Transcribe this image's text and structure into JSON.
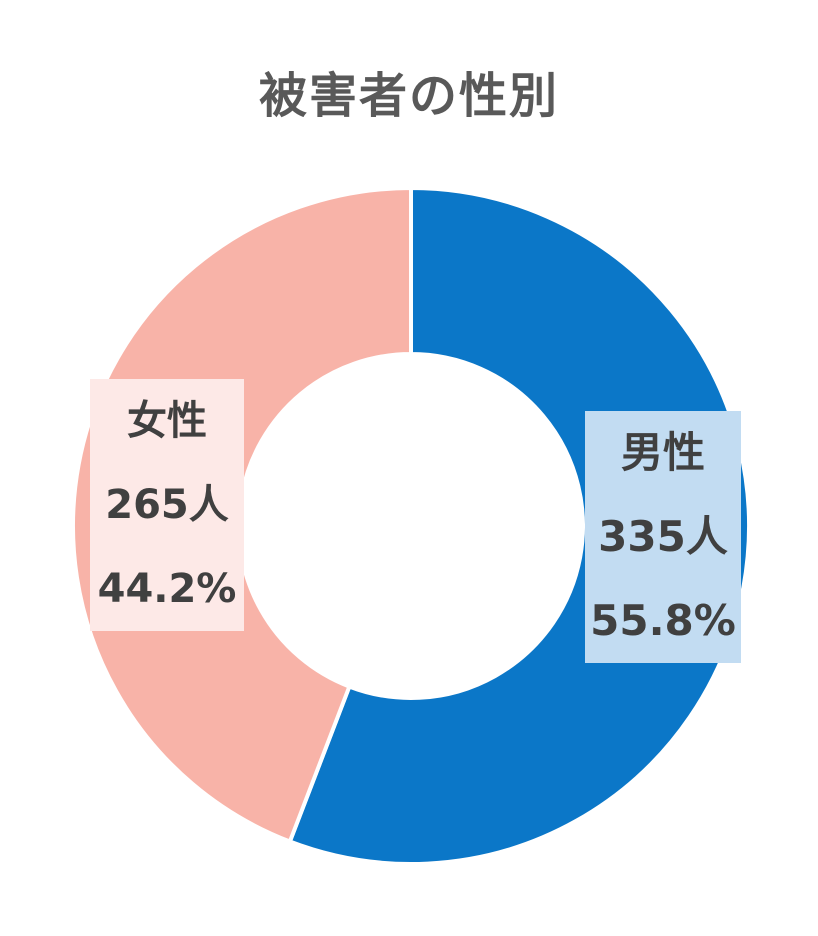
{
  "chart_data": {
    "type": "pie",
    "title": "被害者の性別",
    "donut": true,
    "categories": [
      "男性",
      "女性"
    ],
    "values": [
      335,
      265
    ],
    "value_labels": [
      "335人",
      "265人"
    ],
    "percent_labels": [
      "55.8%",
      "44.2%"
    ],
    "colors": [
      "#0b77c8",
      "#f8b3a8"
    ],
    "label_background_colors": [
      "#c2dcf2",
      "#fde9e7"
    ]
  }
}
